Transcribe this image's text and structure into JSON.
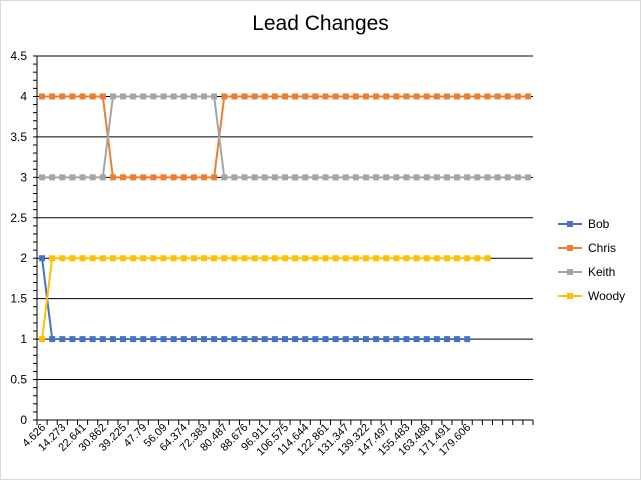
{
  "chart_data": {
    "type": "line",
    "title": "Lead Changes",
    "xlabel": "",
    "ylabel": "",
    "ylim": [
      0,
      4.5
    ],
    "yticks": [
      0,
      0.5,
      1,
      1.5,
      2,
      2.5,
      3,
      3.5,
      4,
      4.5
    ],
    "grid": true,
    "legend_position": "right",
    "x_tick_labels": [
      "4.626",
      "14.273",
      "22.641",
      "30.862",
      "39.225",
      "47.79",
      "56.09",
      "64.374",
      "72.383",
      "80.487",
      "88.676",
      "96.911",
      "106.575",
      "114.644",
      "122.861",
      "131.347",
      "139.322",
      "147.497",
      "155.483",
      "163.488",
      "171.491",
      "179.606"
    ],
    "series": [
      {
        "name": "Bob",
        "color": "#4472c4",
        "values": [
          2,
          1,
          1,
          1,
          1,
          1,
          1,
          1,
          1,
          1,
          1,
          1,
          1,
          1,
          1,
          1,
          1,
          1,
          1,
          1,
          1,
          1,
          1,
          1,
          1,
          1,
          1,
          1,
          1,
          1,
          1,
          1,
          1,
          1,
          1,
          1,
          1,
          1,
          1,
          1,
          1,
          1,
          1
        ]
      },
      {
        "name": "Chris",
        "color": "#ed7d31",
        "values": [
          4,
          4,
          4,
          4,
          4,
          4,
          4,
          3,
          3,
          3,
          3,
          3,
          3,
          3,
          3,
          3,
          3,
          3,
          4,
          4,
          4,
          4,
          4,
          4,
          4,
          4,
          4,
          4,
          4,
          4,
          4,
          4,
          4,
          4,
          4,
          4,
          4,
          4,
          4,
          4,
          4,
          4,
          4,
          4,
          4,
          4,
          4,
          4,
          4
        ]
      },
      {
        "name": "Keith",
        "color": "#a5a5a5",
        "values": [
          3,
          3,
          3,
          3,
          3,
          3,
          3,
          4,
          4,
          4,
          4,
          4,
          4,
          4,
          4,
          4,
          4,
          4,
          3,
          3,
          3,
          3,
          3,
          3,
          3,
          3,
          3,
          3,
          3,
          3,
          3,
          3,
          3,
          3,
          3,
          3,
          3,
          3,
          3,
          3,
          3,
          3,
          3,
          3,
          3,
          3,
          3,
          3,
          3
        ]
      },
      {
        "name": "Woody",
        "color": "#ffc000",
        "values": [
          1,
          2,
          2,
          2,
          2,
          2,
          2,
          2,
          2,
          2,
          2,
          2,
          2,
          2,
          2,
          2,
          2,
          2,
          2,
          2,
          2,
          2,
          2,
          2,
          2,
          2,
          2,
          2,
          2,
          2,
          2,
          2,
          2,
          2,
          2,
          2,
          2,
          2,
          2,
          2,
          2,
          2,
          2,
          2,
          2
        ]
      }
    ]
  }
}
